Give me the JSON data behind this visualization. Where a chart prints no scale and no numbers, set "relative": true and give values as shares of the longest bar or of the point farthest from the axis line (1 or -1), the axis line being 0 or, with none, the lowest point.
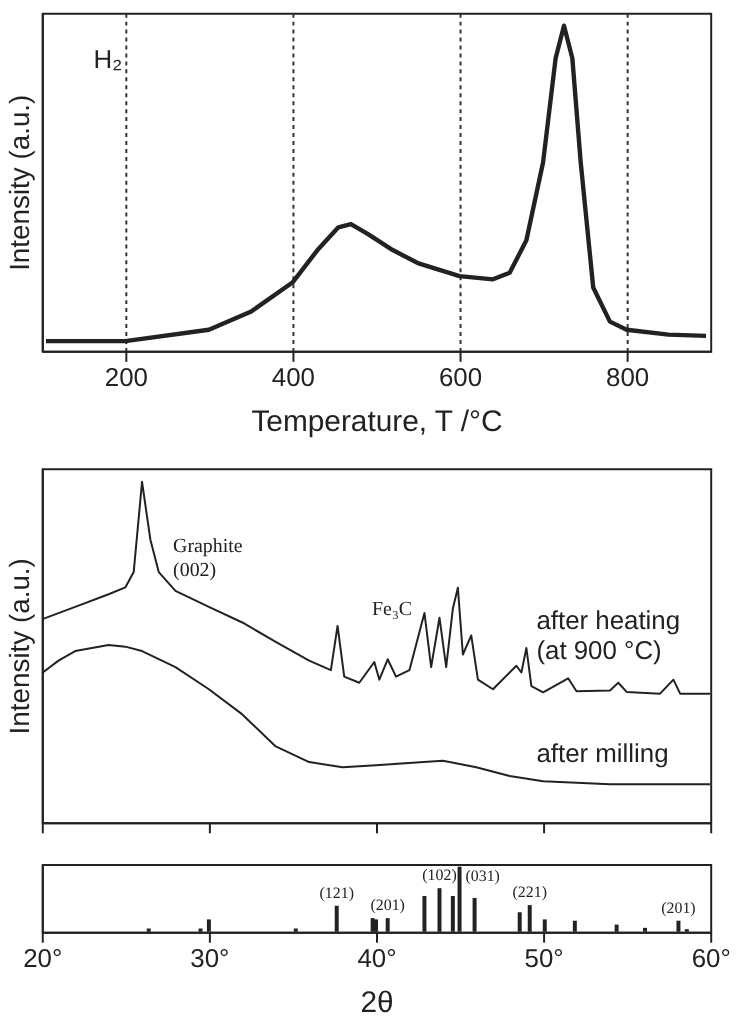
{
  "chart_data": [
    {
      "type": "line",
      "xlabel": "Temperature, T /°C",
      "ylabel": "Intensity (a.u.)",
      "relative": true,
      "xlim": [
        100,
        900
      ],
      "xticks": [
        200,
        400,
        600,
        800
      ],
      "grid": "x",
      "color": "#222222",
      "annotations": [
        "H₂"
      ],
      "x": [
        105,
        200,
        300,
        350,
        400,
        430,
        455,
        470,
        490,
        520,
        550,
        600,
        640,
        660,
        680,
        700,
        715,
        725,
        735,
        745,
        760,
        780,
        800,
        850,
        895
      ],
      "values": [
        0.03,
        0.03,
        0.065,
        0.12,
        0.21,
        0.31,
        0.38,
        0.39,
        0.36,
        0.31,
        0.27,
        0.23,
        0.22,
        0.24,
        0.34,
        0.58,
        0.9,
        1.0,
        0.9,
        0.58,
        0.195,
        0.09,
        0.065,
        0.05,
        0.046
      ]
    },
    {
      "type": "line",
      "ylabel": "Intensity (a.u.)",
      "relative": true,
      "xlim": [
        20,
        60
      ],
      "xticks": [
        20,
        30,
        40,
        50,
        60
      ],
      "tick_labels": false,
      "annotations": [
        "Graphite\n(002)",
        "Fe₃C"
      ],
      "series": [
        {
          "name": "after heating\n(at 900 °C)",
          "color": "#222222",
          "x": [
            20,
            22,
            24,
            25,
            25.5,
            26,
            26.5,
            27,
            28,
            30,
            32,
            34,
            36,
            37.3,
            37.7,
            38.1,
            39,
            39.9,
            40.2,
            40.7,
            41.2,
            42,
            42.9,
            43.3,
            43.8,
            44.2,
            44.6,
            44.9,
            45.2,
            45.7,
            46.1,
            47,
            48.4,
            48.7,
            49,
            49.3,
            50,
            51.5,
            52,
            54,
            54.5,
            55,
            57,
            57.8,
            58.2,
            60
          ],
          "values": [
            0.596,
            0.633,
            0.67,
            0.69,
            0.735,
            1.0,
            0.83,
            0.735,
            0.68,
            0.633,
            0.587,
            0.53,
            0.475,
            0.447,
            0.577,
            0.428,
            0.41,
            0.471,
            0.419,
            0.479,
            0.428,
            0.447,
            0.615,
            0.456,
            0.601,
            0.456,
            0.628,
            0.689,
            0.493,
            0.549,
            0.419,
            0.391,
            0.46,
            0.44,
            0.512,
            0.4,
            0.382,
            0.423,
            0.385,
            0.387,
            0.41,
            0.383,
            0.378,
            0.419,
            0.378,
            0.378
          ]
        },
        {
          "name": "after milling",
          "color": "#222222",
          "x": [
            20,
            21,
            22,
            24,
            25,
            26,
            28,
            30,
            32,
            34,
            36,
            38,
            40,
            44,
            46,
            48,
            50,
            54,
            60
          ],
          "values": [
            0.438,
            0.475,
            0.503,
            0.521,
            0.516,
            0.503,
            0.456,
            0.391,
            0.317,
            0.223,
            0.177,
            0.162,
            0.168,
            0.181,
            0.162,
            0.136,
            0.121,
            0.112,
            0.112
          ]
        }
      ]
    },
    {
      "type": "bar",
      "xlabel": "2θ",
      "relative": true,
      "xlim": [
        20,
        60
      ],
      "xticks": [
        {
          "value": 20,
          "label": "20°"
        },
        {
          "value": 30,
          "label": "30°"
        },
        {
          "value": 40,
          "label": "40°"
        },
        {
          "value": 50,
          "label": "50°"
        },
        {
          "value": 60,
          "label": "60°"
        }
      ],
      "tick_labels": "x",
      "color": "#222222",
      "annotations": [
        {
          "text": "(121)",
          "x": 37.65,
          "y": 0.4
        },
        {
          "text": "(201)",
          "x": 40.7,
          "y": 0.21
        },
        {
          "text": "(102)",
          "x": 43.8,
          "y": 0.67
        },
        {
          "text": "(031)",
          "x": 45.0,
          "y": 1.0
        },
        {
          "text": "(221)",
          "x": 49.2,
          "y": 0.41
        },
        {
          "text": "(201)",
          "x": 58.1,
          "y": 0.17
        }
      ],
      "x": [
        26.4,
        29.5,
        30.0,
        35.2,
        37.65,
        39.8,
        40.0,
        40.7,
        42.9,
        43.8,
        44.6,
        45.0,
        45.9,
        48.6,
        49.2,
        50.1,
        51.9,
        54.4,
        56.1,
        58.1,
        58.6
      ],
      "values": [
        0.05,
        0.05,
        0.19,
        0.05,
        0.4,
        0.21,
        0.19,
        0.21,
        0.55,
        0.67,
        0.55,
        1.0,
        0.52,
        0.3,
        0.41,
        0.19,
        0.17,
        0.11,
        0.06,
        0.17,
        0.04
      ]
    }
  ]
}
